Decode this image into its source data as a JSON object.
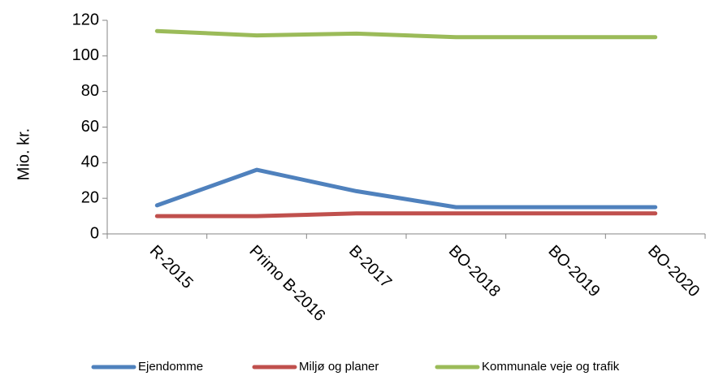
{
  "chart_data": {
    "type": "line",
    "categories": [
      "R-2015",
      "Primo B-2016",
      "B-2017",
      "BO-2018",
      "BO-2019",
      "BO-2020"
    ],
    "series": [
      {
        "name": "Ejendomme",
        "values": [
          16,
          36,
          24,
          15,
          15,
          15
        ],
        "color": "#4f81bd"
      },
      {
        "name": "Miljø og planer",
        "values": [
          10,
          10,
          11.5,
          11.5,
          11.5,
          11.5
        ],
        "color": "#c0504d"
      },
      {
        "name": "Kommunale veje og trafik",
        "values": [
          114,
          111.5,
          112.5,
          110.5,
          110.5,
          110.5
        ],
        "color": "#9bbb59"
      }
    ],
    "title": "",
    "xlabel": "",
    "ylabel": "Mio. kr.",
    "ylim": [
      0,
      120
    ],
    "yticks": [
      0,
      20,
      40,
      60,
      80,
      100,
      120
    ],
    "grid": false,
    "legend_position": "bottom"
  }
}
